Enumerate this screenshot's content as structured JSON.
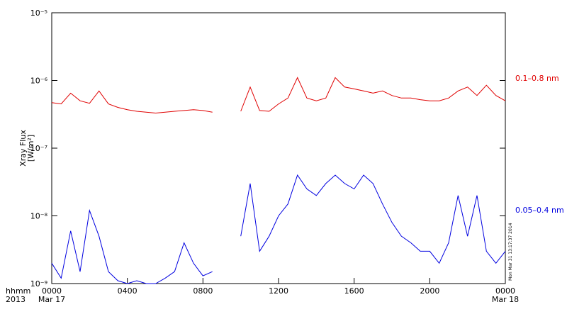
{
  "chart_data": {
    "type": "line",
    "y_label": "Xray Flux",
    "y_unit": "[W/m²]",
    "corner_labels": [
      "hhmm",
      "2013"
    ],
    "annotation": "Mon Mar 31 13:17:37 2014",
    "x": [
      0,
      0.5,
      1,
      1.5,
      2,
      2.5,
      3,
      3.5,
      4,
      4.5,
      5,
      5.5,
      6,
      6.5,
      7,
      7.5,
      8,
      8.5,
      9,
      9.5,
      10,
      10.5,
      11,
      11.5,
      12,
      12.5,
      13,
      13.5,
      14,
      14.5,
      15,
      15.5,
      16,
      16.5,
      17,
      17.5,
      18,
      18.5,
      19,
      19.5,
      20,
      20.5,
      21,
      21.5,
      22,
      22.5,
      23,
      23.5,
      24
    ],
    "xlim": [
      0,
      24
    ],
    "xticks": [
      {
        "value": 0,
        "label": "0000"
      },
      {
        "value": 4,
        "label": "0400"
      },
      {
        "value": 8,
        "label": "0800"
      },
      {
        "value": 12,
        "label": "1200"
      },
      {
        "value": 16,
        "label": "1600"
      },
      {
        "value": 20,
        "label": "2000"
      },
      {
        "value": 24,
        "label": "0000"
      }
    ],
    "xtick_dates": [
      {
        "value": 0,
        "label": "Mar 17"
      },
      {
        "value": 24,
        "label": "Mar 18"
      }
    ],
    "ylim": [
      1e-09,
      1e-05
    ],
    "yticks": [
      {
        "value": 1e-09,
        "label": "10⁻⁹"
      },
      {
        "value": 1e-08,
        "label": "10⁻⁸"
      },
      {
        "value": 1e-07,
        "label": "10⁻⁷"
      },
      {
        "value": 1e-06,
        "label": "10⁻⁶"
      },
      {
        "value": 1e-05,
        "label": "10⁻⁵"
      }
    ],
    "log_scale": true,
    "series": [
      {
        "name": "0.1–0.8 nm",
        "color": "#e00000",
        "values": [
          4.7e-07,
          4.5e-07,
          6.5e-07,
          5e-07,
          4.6e-07,
          7e-07,
          4.5e-07,
          4e-07,
          3.7e-07,
          3.5e-07,
          3.4e-07,
          3.3e-07,
          3.4e-07,
          3.5e-07,
          3.6e-07,
          3.7e-07,
          3.6e-07,
          3.4e-07,
          null,
          null,
          3.5e-07,
          8e-07,
          3.6e-07,
          3.5e-07,
          4.5e-07,
          5.5e-07,
          1.1e-06,
          5.5e-07,
          5e-07,
          5.5e-07,
          1.1e-06,
          8e-07,
          7.5e-07,
          7e-07,
          6.5e-07,
          7e-07,
          6e-07,
          5.5e-07,
          5.5e-07,
          5.2e-07,
          5e-07,
          5e-07,
          5.5e-07,
          7e-07,
          8e-07,
          6e-07,
          8.5e-07,
          6e-07,
          5e-07
        ]
      },
      {
        "name": "0.05–0.4 nm",
        "color": "#0000e0",
        "values": [
          2e-09,
          1.2e-09,
          6e-09,
          1.5e-09,
          1.2e-08,
          5e-09,
          1.5e-09,
          1.1e-09,
          1e-09,
          1.1e-09,
          1e-09,
          1e-09,
          1.2e-09,
          1.5e-09,
          4e-09,
          2e-09,
          1.3e-09,
          1.5e-09,
          null,
          null,
          5e-09,
          3e-08,
          3e-09,
          5e-09,
          1e-08,
          1.5e-08,
          4e-08,
          2.5e-08,
          2e-08,
          3e-08,
          4e-08,
          3e-08,
          2.5e-08,
          4e-08,
          3e-08,
          1.5e-08,
          8e-09,
          5e-09,
          4e-09,
          3e-09,
          3e-09,
          2e-09,
          4e-09,
          2e-08,
          5e-09,
          2e-08,
          3e-09,
          2e-09,
          3e-09
        ]
      }
    ]
  }
}
